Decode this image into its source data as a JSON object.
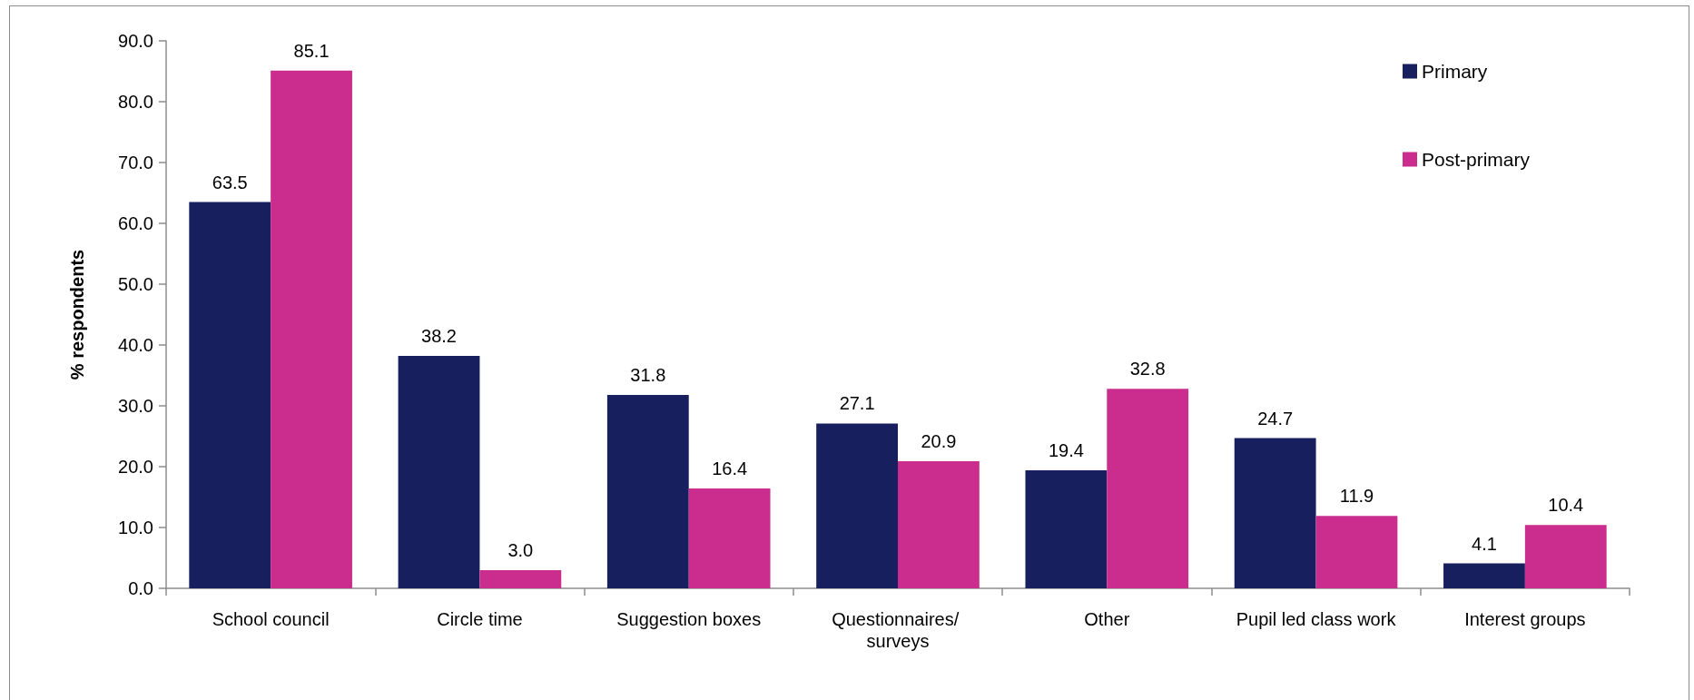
{
  "chart_data": {
    "type": "bar",
    "ylabel": "% respondents",
    "categories": [
      "School council",
      "Circle time",
      "Suggestion boxes",
      "Questionnaires/ surveys",
      "Other",
      "Pupil led class work",
      "Interest groups"
    ],
    "series": [
      {
        "name": "Primary",
        "color": "#171f5f",
        "values": [
          63.5,
          38.2,
          31.8,
          27.1,
          19.4,
          24.7,
          4.1
        ],
        "value_labels": [
          "63.5",
          "38.2",
          "31.8",
          "27.1",
          "19.4",
          "24.7",
          "4.1"
        ]
      },
      {
        "name": "Post-primary",
        "color": "#cb2d8f",
        "values": [
          85.1,
          3.0,
          16.4,
          20.9,
          32.8,
          11.9,
          10.4
        ],
        "value_labels": [
          "85.1",
          "3.0",
          "16.4",
          "20.9",
          "32.8",
          "11.9",
          "10.4"
        ]
      }
    ],
    "ylim": [
      0,
      90
    ],
    "yticks": [
      {
        "value": 0,
        "label": "0.0"
      },
      {
        "value": 10,
        "label": "10.0"
      },
      {
        "value": 20,
        "label": "20.0"
      },
      {
        "value": 30,
        "label": "30.0"
      },
      {
        "value": 40,
        "label": "40.0"
      },
      {
        "value": 50,
        "label": "50.0"
      },
      {
        "value": 60,
        "label": "60.0"
      },
      {
        "value": 70,
        "label": "70.0"
      },
      {
        "value": 80,
        "label": "80.0"
      },
      {
        "value": 90,
        "label": "90.0"
      }
    ],
    "legend": "top right"
  }
}
